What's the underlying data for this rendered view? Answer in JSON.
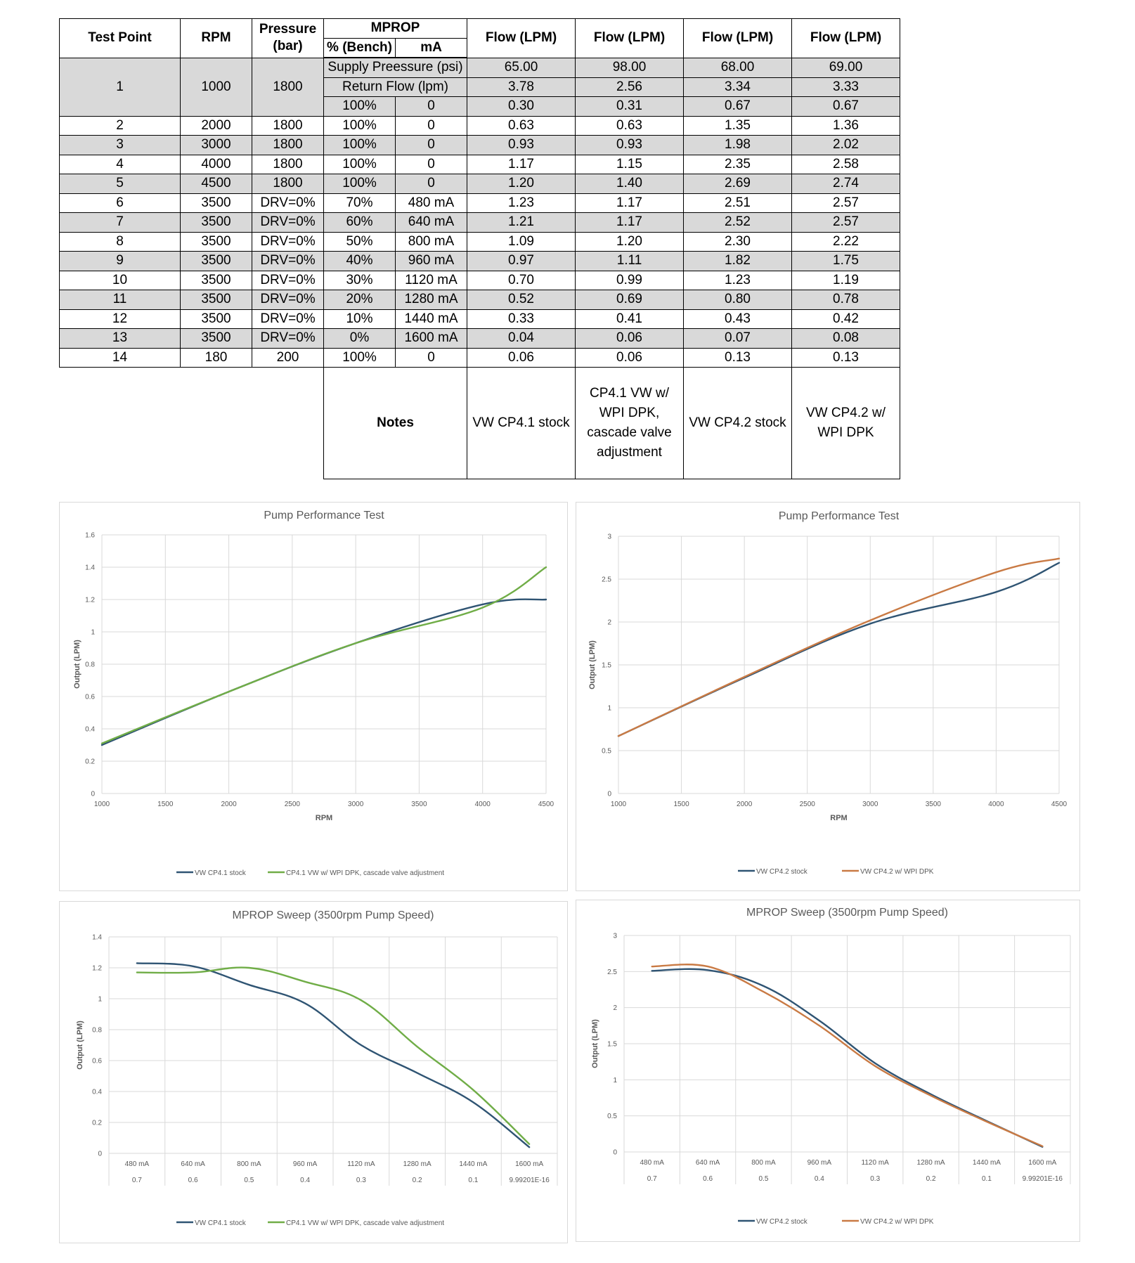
{
  "table": {
    "headers": {
      "test_point": "Test Point",
      "rpm": "RPM",
      "pressure_line1": "Pressure",
      "pressure_line2": "(bar)",
      "mprop": "MPROP",
      "pct_bench": "% (Bench)",
      "ma": "mA",
      "flow": [
        "Flow (LPM)",
        "Flow (LPM)",
        "Flow (LPM)",
        "Flow (LPM)"
      ]
    },
    "point1": {
      "test_point": "1",
      "rpm": "1000",
      "pressure": "1800",
      "supply_label": "Supply Preessure (psi)",
      "supply_values": [
        "65.00",
        "98.00",
        "68.00",
        "69.00"
      ],
      "return_label": "Return Flow (lpm)",
      "return_values": [
        "3.78",
        "2.56",
        "3.34",
        "3.33"
      ],
      "pct": "100%",
      "ma": "0",
      "flow": [
        "0.30",
        "0.31",
        "0.67",
        "0.67"
      ]
    },
    "rows": [
      {
        "tp": "2",
        "rpm": "2000",
        "pressure": "1800",
        "pct": "100%",
        "ma": "0",
        "flow": [
          "0.63",
          "0.63",
          "1.35",
          "1.36"
        ]
      },
      {
        "tp": "3",
        "rpm": "3000",
        "pressure": "1800",
        "pct": "100%",
        "ma": "0",
        "flow": [
          "0.93",
          "0.93",
          "1.98",
          "2.02"
        ]
      },
      {
        "tp": "4",
        "rpm": "4000",
        "pressure": "1800",
        "pct": "100%",
        "ma": "0",
        "flow": [
          "1.17",
          "1.15",
          "2.35",
          "2.58"
        ]
      },
      {
        "tp": "5",
        "rpm": "4500",
        "pressure": "1800",
        "pct": "100%",
        "ma": "0",
        "flow": [
          "1.20",
          "1.40",
          "2.69",
          "2.74"
        ]
      },
      {
        "tp": "6",
        "rpm": "3500",
        "pressure": "DRV=0%",
        "pct": "70%",
        "ma": "480 mA",
        "flow": [
          "1.23",
          "1.17",
          "2.51",
          "2.57"
        ]
      },
      {
        "tp": "7",
        "rpm": "3500",
        "pressure": "DRV=0%",
        "pct": "60%",
        "ma": "640 mA",
        "flow": [
          "1.21",
          "1.17",
          "2.52",
          "2.57"
        ]
      },
      {
        "tp": "8",
        "rpm": "3500",
        "pressure": "DRV=0%",
        "pct": "50%",
        "ma": "800 mA",
        "flow": [
          "1.09",
          "1.20",
          "2.30",
          "2.22"
        ]
      },
      {
        "tp": "9",
        "rpm": "3500",
        "pressure": "DRV=0%",
        "pct": "40%",
        "ma": "960 mA",
        "flow": [
          "0.97",
          "1.11",
          "1.82",
          "1.75"
        ]
      },
      {
        "tp": "10",
        "rpm": "3500",
        "pressure": "DRV=0%",
        "pct": "30%",
        "ma": "1120 mA",
        "flow": [
          "0.70",
          "0.99",
          "1.23",
          "1.19"
        ]
      },
      {
        "tp": "11",
        "rpm": "3500",
        "pressure": "DRV=0%",
        "pct": "20%",
        "ma": "1280 mA",
        "flow": [
          "0.52",
          "0.69",
          "0.80",
          "0.78"
        ]
      },
      {
        "tp": "12",
        "rpm": "3500",
        "pressure": "DRV=0%",
        "pct": "10%",
        "ma": "1440 mA",
        "flow": [
          "0.33",
          "0.41",
          "0.43",
          "0.42"
        ]
      },
      {
        "tp": "13",
        "rpm": "3500",
        "pressure": "DRV=0%",
        "pct": "0%",
        "ma": "1600 mA",
        "flow": [
          "0.04",
          "0.06",
          "0.07",
          "0.08"
        ]
      },
      {
        "tp": "14",
        "rpm": "180",
        "pressure": "200",
        "pct": "100%",
        "ma": "0",
        "flow": [
          "0.06",
          "0.06",
          "0.13",
          "0.13"
        ]
      }
    ],
    "notes_label": "Notes",
    "notes": [
      "VW CP4.1 stock",
      "CP4.1 VW w/ WPI DPK, cascade valve adjustment",
      "VW CP4.2 stock",
      "VW CP4.2 w/ WPI DPK"
    ]
  },
  "colors": {
    "stock": "#2f5473",
    "dpk_cp41": "#70ad47",
    "dpk_cp42": "#c97a44",
    "grid": "#d9d9d9",
    "text": "#595959"
  },
  "chart_data": [
    {
      "type": "line",
      "title": "Pump Performance Test",
      "xlabel": "RPM",
      "ylabel": "Output (LPM)",
      "x": [
        1000,
        2000,
        3000,
        4000,
        4500
      ],
      "xlim": [
        1000,
        4500
      ],
      "xticks": [
        "1000",
        "1500",
        "2000",
        "2500",
        "3000",
        "3500",
        "4000",
        "4500"
      ],
      "ylim": [
        0,
        1.6
      ],
      "yticks": [
        "0",
        "0.2",
        "0.4",
        "0.6",
        "0.8",
        "1",
        "1.2",
        "1.4",
        "1.6"
      ],
      "grid": true,
      "legend": "bottom",
      "series": [
        {
          "name": "VW CP4.1 stock",
          "values": [
            0.3,
            0.63,
            0.93,
            1.17,
            1.2
          ]
        },
        {
          "name": "CP4.1 VW w/ WPI DPK, cascade valve adjustment",
          "values": [
            0.31,
            0.63,
            0.93,
            1.15,
            1.4
          ]
        }
      ]
    },
    {
      "type": "line",
      "title": "Pump Performance Test",
      "xlabel": "RPM",
      "ylabel": "Output (LPM)",
      "x": [
        1000,
        2000,
        3000,
        4000,
        4500
      ],
      "xlim": [
        1000,
        4500
      ],
      "xticks": [
        "1000",
        "1500",
        "2000",
        "2500",
        "3000",
        "3500",
        "4000",
        "4500"
      ],
      "ylim": [
        0,
        3
      ],
      "yticks": [
        "0",
        "0.5",
        "1",
        "1.5",
        "2",
        "2.5",
        "3"
      ],
      "grid": true,
      "legend": "bottom",
      "series": [
        {
          "name": "VW CP4.2 stock",
          "values": [
            0.67,
            1.35,
            1.98,
            2.35,
            2.69
          ]
        },
        {
          "name": "VW CP4.2 w/ WPI DPK",
          "values": [
            0.67,
            1.36,
            2.02,
            2.58,
            2.74
          ]
        }
      ]
    },
    {
      "type": "line",
      "title": "MPROP Sweep (3500rpm Pump Speed)",
      "xlabel": "",
      "ylabel": "Output (LPM)",
      "categories": [
        "480 mA",
        "640 mA",
        "800 mA",
        "960 mA",
        "1120 mA",
        "1280 mA",
        "1440 mA",
        "1600 mA"
      ],
      "categories2": [
        "0.7",
        "0.6",
        "0.5",
        "0.4",
        "0.3",
        "0.2",
        "0.1",
        "9.99201E-16"
      ],
      "ylim": [
        0,
        1.4
      ],
      "yticks": [
        "0",
        "0.2",
        "0.4",
        "0.6",
        "0.8",
        "1",
        "1.2",
        "1.4"
      ],
      "grid": true,
      "legend": "bottom",
      "series": [
        {
          "name": "VW CP4.1 stock",
          "values": [
            1.23,
            1.21,
            1.09,
            0.97,
            0.7,
            0.52,
            0.33,
            0.04
          ]
        },
        {
          "name": "CP4.1 VW w/ WPI DPK, cascade valve adjustment",
          "values": [
            1.17,
            1.17,
            1.2,
            1.11,
            0.99,
            0.69,
            0.41,
            0.06
          ]
        }
      ]
    },
    {
      "type": "line",
      "title": "MPROP Sweep (3500rpm Pump Speed)",
      "xlabel": "",
      "ylabel": "Output (LPM)",
      "categories": [
        "480 mA",
        "640 mA",
        "800 mA",
        "960 mA",
        "1120 mA",
        "1280 mA",
        "1440 mA",
        "1600 mA"
      ],
      "categories2": [
        "0.7",
        "0.6",
        "0.5",
        "0.4",
        "0.3",
        "0.2",
        "0.1",
        "9.99201E-16"
      ],
      "ylim": [
        0,
        3
      ],
      "yticks": [
        "0",
        "0.5",
        "1",
        "1.5",
        "2",
        "2.5",
        "3"
      ],
      "grid": true,
      "legend": "bottom",
      "series": [
        {
          "name": "VW CP4.2 stock",
          "values": [
            2.51,
            2.52,
            2.3,
            1.82,
            1.23,
            0.8,
            0.43,
            0.07
          ]
        },
        {
          "name": "VW CP4.2 w/ WPI DPK",
          "values": [
            2.57,
            2.57,
            2.22,
            1.75,
            1.19,
            0.78,
            0.42,
            0.08
          ]
        }
      ]
    }
  ]
}
